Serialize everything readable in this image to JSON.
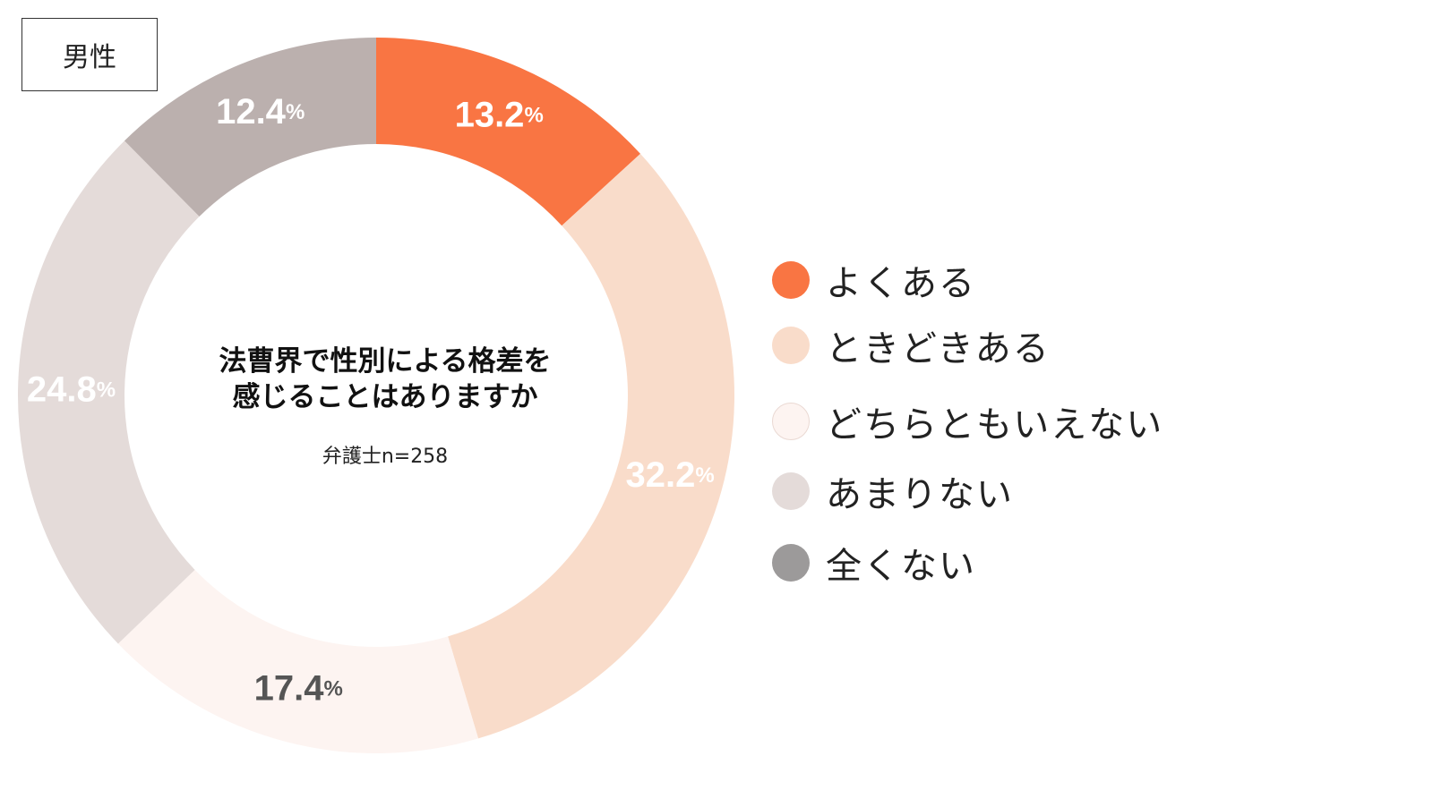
{
  "badge": {
    "label": "男性"
  },
  "center": {
    "title_line1": "法曹界で性別による格差を",
    "title_line2": "感じることはありますか",
    "sample": "弁護士n=258"
  },
  "chart_data": {
    "type": "pie",
    "categories": [
      "よくある",
      "ときどきある",
      "どちらともいえない",
      "あまりない",
      "全くない"
    ],
    "values": [
      13.2,
      32.2,
      17.4,
      24.8,
      12.4
    ],
    "value_labels": [
      "13.2",
      "32.2",
      "17.4",
      "24.8",
      "12.4"
    ],
    "unit": "%",
    "colors": [
      "#F97543",
      "#F9DCCA",
      "#FDF4F1",
      "#E4DBD9",
      "#BBB0AE"
    ],
    "legend_colors": [
      "#F97543",
      "#F9DCCA",
      "#FDF4F1",
      "#E4DBD9",
      "#9C9A9A"
    ],
    "label_colors": [
      "#FFFFFF",
      "#FFFFFF",
      "#555555",
      "#FFFFFF",
      "#FFFFFF"
    ],
    "donut": true,
    "legend_position": "right"
  },
  "legend": {
    "items": [
      "よくある",
      "ときどきある",
      "どちらともいえない",
      "あまりない",
      "全くない"
    ]
  }
}
